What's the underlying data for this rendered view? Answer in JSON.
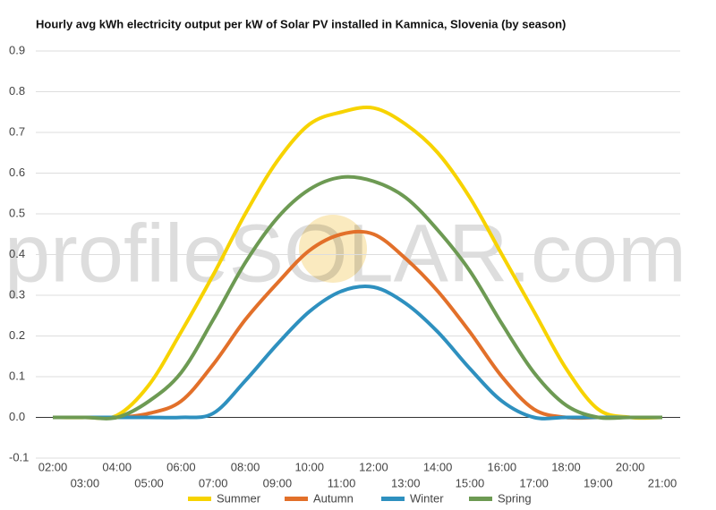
{
  "chart_data": {
    "type": "line",
    "title": "Hourly avg kWh electricity output per kW of Solar PV installed in Kamnica, Slovenia (by season)",
    "watermark": "profileSOLAR.com",
    "categories": [
      "02:00",
      "03:00",
      "04:00",
      "05:00",
      "06:00",
      "07:00",
      "08:00",
      "09:00",
      "10:00",
      "11:00",
      "12:00",
      "13:00",
      "14:00",
      "15:00",
      "16:00",
      "17:00",
      "18:00",
      "19:00",
      "20:00",
      "21:00"
    ],
    "series": [
      {
        "name": "Summer",
        "color": "#f7d300",
        "values": [
          0,
          0,
          0.005,
          0.08,
          0.21,
          0.35,
          0.5,
          0.63,
          0.72,
          0.75,
          0.76,
          0.72,
          0.65,
          0.54,
          0.4,
          0.26,
          0.12,
          0.02,
          0,
          0
        ]
      },
      {
        "name": "Autumn",
        "color": "#e2702a",
        "values": [
          0,
          0,
          0,
          0.01,
          0.04,
          0.13,
          0.24,
          0.33,
          0.41,
          0.45,
          0.45,
          0.39,
          0.31,
          0.21,
          0.1,
          0.02,
          0,
          0,
          0,
          0
        ]
      },
      {
        "name": "Winter",
        "color": "#2e90bf",
        "values": [
          0,
          0,
          0,
          0,
          0,
          0.01,
          0.09,
          0.18,
          0.26,
          0.31,
          0.32,
          0.28,
          0.21,
          0.12,
          0.04,
          0,
          0,
          0,
          0,
          0
        ]
      },
      {
        "name": "Spring",
        "color": "#6d9a53",
        "values": [
          0,
          0,
          0,
          0.04,
          0.11,
          0.24,
          0.38,
          0.49,
          0.56,
          0.59,
          0.58,
          0.54,
          0.46,
          0.36,
          0.23,
          0.11,
          0.03,
          0,
          0,
          0
        ]
      }
    ],
    "ylim": [
      -0.1,
      0.9
    ],
    "yticks": [
      -0.1,
      {
        "value": 0,
        "label": "0.0"
      },
      0.1,
      0.2,
      0.3,
      0.4,
      0.5,
      0.6,
      0.7,
      0.8,
      0.9
    ],
    "grid": true,
    "legend": "bottom"
  }
}
